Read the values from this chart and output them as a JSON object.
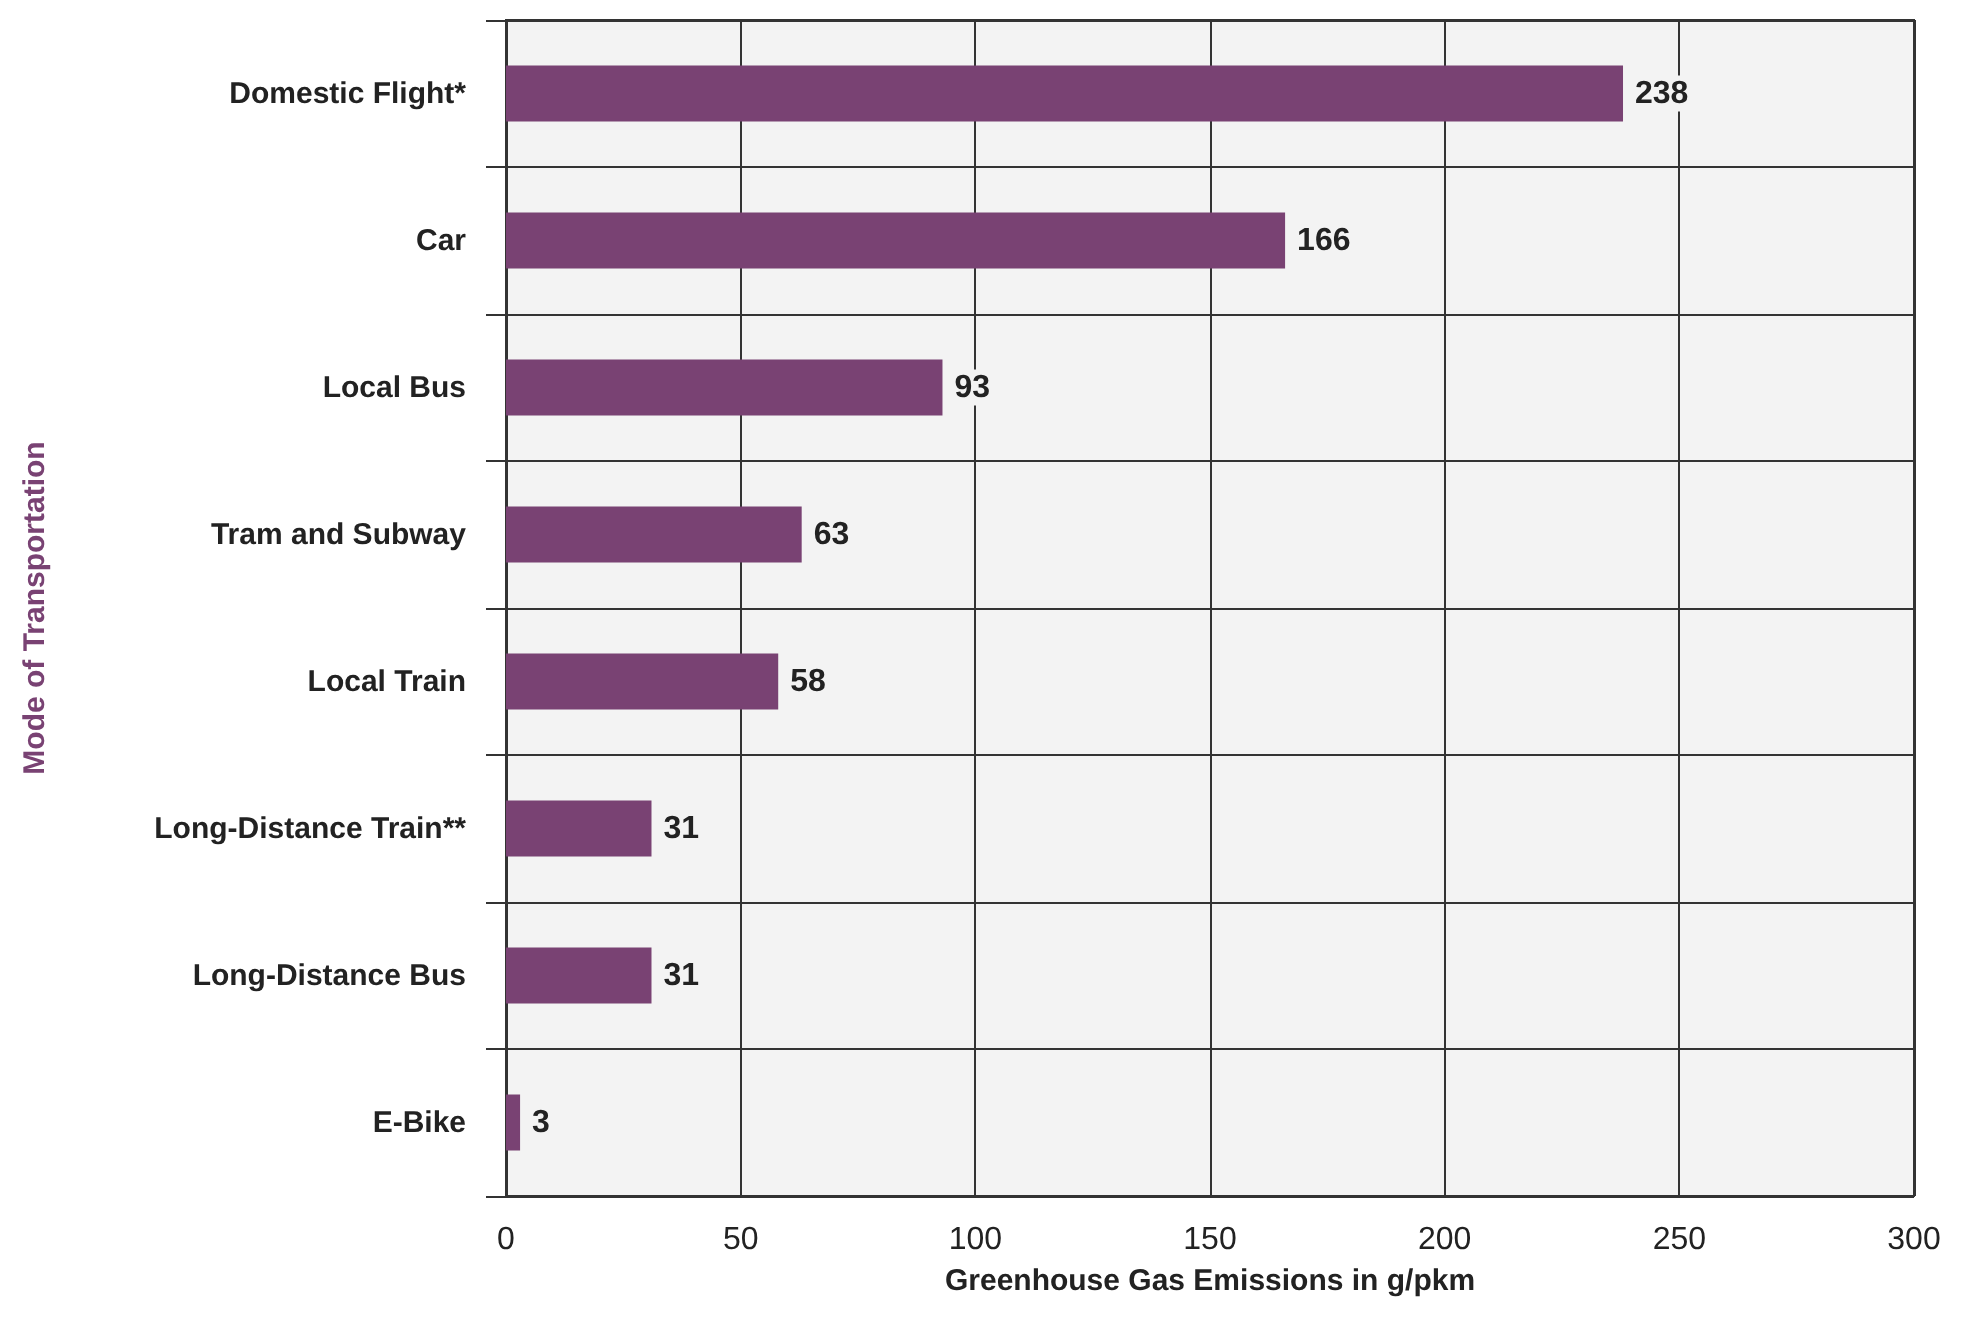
{
  "chart_data": {
    "type": "bar",
    "orientation": "horizontal",
    "xlabel": "Greenhouse Gas Emissions in g/pkm",
    "ylabel": "Mode of Transportation",
    "categories": [
      "Domestic Flight*",
      "Car",
      "Local Bus",
      "Tram and Subway",
      "Local Train",
      "Long-Distance Train**",
      "Long-Distance Bus",
      "E-Bike"
    ],
    "values": [
      238,
      166,
      93,
      63,
      58,
      31,
      31,
      3
    ],
    "color": "#794273",
    "xlim": [
      0,
      300
    ],
    "xticks": [
      0,
      50,
      100,
      150,
      200,
      250,
      300
    ],
    "grid": true,
    "data_labels": true
  }
}
